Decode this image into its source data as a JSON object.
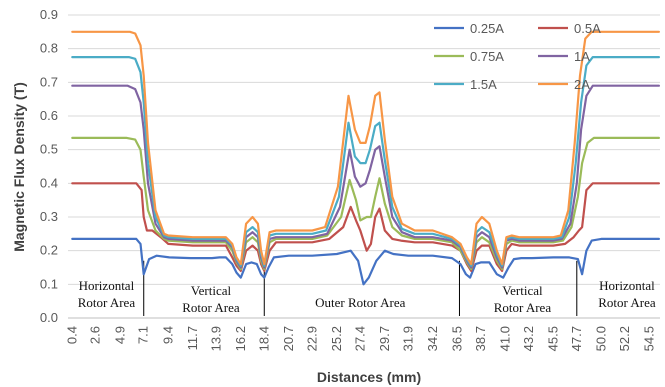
{
  "chart_data": {
    "type": "line",
    "title": "",
    "xlabel": "Distances (mm)",
    "ylabel": "Magnetic Flux Density (T)",
    "ylim": [
      0,
      0.9
    ],
    "yticks": [
      "0.0",
      "0.1",
      "0.2",
      "0.3",
      "0.4",
      "0.5",
      "0.6",
      "0.7",
      "0.8",
      "0.9"
    ],
    "xlim": [
      0,
      55.5
    ],
    "xticks": [
      "0.4",
      "2.6",
      "4.9",
      "7.1",
      "9.4",
      "11.7",
      "13.9",
      "16.2",
      "18.4",
      "20.7",
      "22.9",
      "25.2",
      "27.4",
      "29.7",
      "31.9",
      "34.2",
      "36.5",
      "38.7",
      "41.0",
      "43.2",
      "45.5",
      "47.7",
      "50.0",
      "52.2",
      "54.5"
    ],
    "grid": "horizontal",
    "legend_position": "top-right",
    "colors": {
      "0.25A": "#4472C4",
      "0.5A": "#C0504D",
      "0.75A": "#9BBB59",
      "1A": "#8064A2",
      "1.5A": "#4BACC6",
      "2A": "#F79646"
    },
    "series": [
      {
        "name": "0.25A",
        "x": [
          0.4,
          5.0,
          6.4,
          6.8,
          7.1,
          7.6,
          8.3,
          9.5,
          11.5,
          13.5,
          14.2,
          14.8,
          15.4,
          15.8,
          16.2,
          16.7,
          17.2,
          17.7,
          18.1,
          18.4,
          18.8,
          19.3,
          20.7,
          22.9,
          25.2,
          26.5,
          27.2,
          27.7,
          28.2,
          28.9,
          29.7,
          30.5,
          31.9,
          34.2,
          36.0,
          36.8,
          37.3,
          37.7,
          38.2,
          38.7,
          39.5,
          40.2,
          40.8,
          41.3,
          41.8,
          42.5,
          43.5,
          45.5,
          47.0,
          47.8,
          48.2,
          48.6,
          49.1,
          50.0,
          52.2,
          55.4
        ],
        "values": [
          0.235,
          0.235,
          0.235,
          0.22,
          0.13,
          0.175,
          0.185,
          0.18,
          0.178,
          0.178,
          0.18,
          0.18,
          0.16,
          0.135,
          0.12,
          0.16,
          0.165,
          0.16,
          0.13,
          0.12,
          0.15,
          0.18,
          0.185,
          0.185,
          0.19,
          0.2,
          0.17,
          0.1,
          0.12,
          0.17,
          0.2,
          0.19,
          0.185,
          0.185,
          0.178,
          0.16,
          0.13,
          0.12,
          0.16,
          0.165,
          0.165,
          0.13,
          0.12,
          0.15,
          0.175,
          0.178,
          0.178,
          0.18,
          0.18,
          0.175,
          0.13,
          0.2,
          0.23,
          0.235,
          0.235,
          0.235
        ]
      },
      {
        "name": "0.5A",
        "x": [
          0.4,
          5.5,
          6.4,
          6.9,
          7.1,
          7.4,
          7.9,
          8.7,
          9.4,
          11.7,
          13.9,
          14.8,
          15.4,
          15.8,
          16.2,
          16.7,
          17.3,
          17.8,
          18.1,
          18.4,
          18.9,
          19.5,
          20.7,
          22.9,
          24.5,
          25.8,
          26.5,
          27.0,
          27.4,
          28.0,
          28.4,
          28.8,
          29.2,
          29.7,
          30.4,
          31.2,
          32.5,
          34.2,
          36.0,
          36.8,
          37.4,
          37.8,
          38.3,
          38.8,
          39.5,
          40.2,
          40.7,
          41.1,
          41.6,
          42.3,
          43.2,
          45.5,
          46.6,
          47.4,
          47.9,
          48.2,
          48.6,
          49.2,
          50.0,
          52.2,
          55.4
        ],
        "values": [
          0.4,
          0.4,
          0.4,
          0.38,
          0.3,
          0.26,
          0.26,
          0.24,
          0.22,
          0.215,
          0.215,
          0.215,
          0.18,
          0.155,
          0.14,
          0.2,
          0.215,
          0.2,
          0.16,
          0.14,
          0.2,
          0.225,
          0.225,
          0.225,
          0.235,
          0.27,
          0.33,
          0.29,
          0.26,
          0.2,
          0.22,
          0.3,
          0.325,
          0.26,
          0.235,
          0.23,
          0.225,
          0.225,
          0.215,
          0.2,
          0.16,
          0.14,
          0.2,
          0.215,
          0.215,
          0.16,
          0.14,
          0.2,
          0.22,
          0.215,
          0.215,
          0.215,
          0.22,
          0.24,
          0.26,
          0.27,
          0.38,
          0.4,
          0.4,
          0.4,
          0.4
        ]
      },
      {
        "name": "0.75A",
        "x": [
          0.4,
          5.5,
          6.3,
          6.8,
          7.1,
          7.5,
          8.2,
          9.0,
          9.4,
          11.7,
          13.9,
          14.8,
          15.4,
          15.8,
          16.2,
          16.7,
          17.3,
          17.8,
          18.1,
          18.4,
          18.9,
          19.5,
          20.7,
          22.9,
          24.3,
          25.6,
          26.4,
          27.0,
          27.4,
          28.0,
          28.4,
          28.8,
          29.2,
          29.7,
          30.4,
          31.3,
          32.5,
          34.2,
          36.0,
          36.8,
          37.4,
          37.8,
          38.3,
          38.8,
          39.5,
          40.2,
          40.7,
          41.1,
          41.6,
          42.3,
          43.2,
          45.5,
          46.4,
          47.2,
          47.8,
          48.2,
          48.7,
          49.3,
          50.0,
          52.2,
          55.4
        ],
        "values": [
          0.535,
          0.535,
          0.53,
          0.5,
          0.42,
          0.32,
          0.26,
          0.235,
          0.23,
          0.225,
          0.225,
          0.225,
          0.2,
          0.165,
          0.145,
          0.225,
          0.24,
          0.225,
          0.17,
          0.145,
          0.225,
          0.235,
          0.235,
          0.235,
          0.245,
          0.3,
          0.41,
          0.35,
          0.29,
          0.3,
          0.3,
          0.36,
          0.415,
          0.34,
          0.27,
          0.245,
          0.235,
          0.235,
          0.225,
          0.2,
          0.165,
          0.145,
          0.225,
          0.24,
          0.225,
          0.17,
          0.145,
          0.22,
          0.23,
          0.225,
          0.225,
          0.225,
          0.23,
          0.27,
          0.36,
          0.46,
          0.52,
          0.535,
          0.535,
          0.535,
          0.535
        ]
      },
      {
        "name": "1A",
        "x": [
          0.4,
          5.6,
          6.3,
          6.8,
          7.1,
          7.5,
          8.2,
          9.0,
          9.4,
          11.7,
          13.9,
          14.8,
          15.4,
          15.8,
          16.2,
          16.7,
          17.3,
          17.8,
          18.1,
          18.4,
          18.9,
          19.5,
          20.7,
          22.9,
          24.3,
          25.5,
          26.4,
          26.9,
          27.4,
          27.9,
          28.3,
          28.8,
          29.2,
          29.7,
          30.4,
          31.3,
          32.5,
          34.2,
          36.0,
          36.8,
          37.4,
          37.8,
          38.3,
          38.8,
          39.5,
          40.2,
          40.7,
          41.1,
          41.6,
          42.3,
          43.2,
          45.5,
          46.3,
          47.1,
          47.7,
          48.1,
          48.6,
          49.2,
          50.0,
          52.2,
          55.4
        ],
        "values": [
          0.69,
          0.69,
          0.68,
          0.64,
          0.56,
          0.4,
          0.28,
          0.24,
          0.235,
          0.23,
          0.23,
          0.23,
          0.21,
          0.17,
          0.15,
          0.24,
          0.255,
          0.24,
          0.18,
          0.15,
          0.235,
          0.24,
          0.24,
          0.24,
          0.25,
          0.33,
          0.5,
          0.42,
          0.39,
          0.4,
          0.44,
          0.5,
          0.51,
          0.42,
          0.3,
          0.255,
          0.24,
          0.24,
          0.23,
          0.21,
          0.17,
          0.15,
          0.24,
          0.255,
          0.24,
          0.18,
          0.15,
          0.23,
          0.235,
          0.23,
          0.23,
          0.23,
          0.235,
          0.28,
          0.4,
          0.56,
          0.66,
          0.69,
          0.69,
          0.69,
          0.69
        ]
      },
      {
        "name": "1.5A",
        "x": [
          0.4,
          5.7,
          6.3,
          6.8,
          7.1,
          7.5,
          8.2,
          9.0,
          9.4,
          11.7,
          13.9,
          14.8,
          15.4,
          15.8,
          16.2,
          16.7,
          17.3,
          17.8,
          18.1,
          18.4,
          18.9,
          19.5,
          20.7,
          22.9,
          24.2,
          25.4,
          26.3,
          26.9,
          27.4,
          27.9,
          28.3,
          28.8,
          29.2,
          29.7,
          30.4,
          31.3,
          32.5,
          34.2,
          36.0,
          36.8,
          37.4,
          37.8,
          38.3,
          38.8,
          39.5,
          40.2,
          40.7,
          41.1,
          41.6,
          42.3,
          43.2,
          45.5,
          46.3,
          47.0,
          47.6,
          48.1,
          48.6,
          49.2,
          50.0,
          52.2,
          55.4
        ],
        "values": [
          0.775,
          0.775,
          0.77,
          0.73,
          0.64,
          0.46,
          0.3,
          0.245,
          0.24,
          0.235,
          0.235,
          0.235,
          0.215,
          0.175,
          0.155,
          0.255,
          0.27,
          0.255,
          0.19,
          0.155,
          0.245,
          0.25,
          0.25,
          0.25,
          0.26,
          0.36,
          0.58,
          0.48,
          0.46,
          0.46,
          0.5,
          0.57,
          0.58,
          0.47,
          0.33,
          0.265,
          0.25,
          0.25,
          0.235,
          0.215,
          0.175,
          0.155,
          0.255,
          0.27,
          0.255,
          0.19,
          0.155,
          0.235,
          0.24,
          0.235,
          0.235,
          0.235,
          0.24,
          0.3,
          0.46,
          0.64,
          0.75,
          0.775,
          0.775,
          0.775,
          0.775
        ]
      },
      {
        "name": "2A",
        "x": [
          0.4,
          5.8,
          6.3,
          6.8,
          7.1,
          7.5,
          8.2,
          9.0,
          9.4,
          11.7,
          13.9,
          14.8,
          15.4,
          15.8,
          16.2,
          16.7,
          17.3,
          17.8,
          18.1,
          18.4,
          18.9,
          19.5,
          20.7,
          22.9,
          24.1,
          25.3,
          26.3,
          26.9,
          27.4,
          27.9,
          28.3,
          28.8,
          29.2,
          29.7,
          30.4,
          31.3,
          32.5,
          34.2,
          36.0,
          36.8,
          37.4,
          37.8,
          38.3,
          38.8,
          39.5,
          40.2,
          40.7,
          41.1,
          41.6,
          42.3,
          43.2,
          45.5,
          46.2,
          46.9,
          47.5,
          48.0,
          48.5,
          49.1,
          50.0,
          52.2,
          55.4
        ],
        "values": [
          0.85,
          0.85,
          0.845,
          0.81,
          0.72,
          0.52,
          0.32,
          0.25,
          0.245,
          0.24,
          0.24,
          0.24,
          0.22,
          0.18,
          0.16,
          0.28,
          0.3,
          0.28,
          0.2,
          0.16,
          0.255,
          0.26,
          0.26,
          0.26,
          0.27,
          0.39,
          0.66,
          0.56,
          0.52,
          0.52,
          0.57,
          0.66,
          0.67,
          0.53,
          0.36,
          0.28,
          0.26,
          0.26,
          0.24,
          0.22,
          0.18,
          0.16,
          0.28,
          0.3,
          0.28,
          0.2,
          0.16,
          0.24,
          0.245,
          0.24,
          0.24,
          0.24,
          0.245,
          0.32,
          0.52,
          0.72,
          0.83,
          0.85,
          0.85,
          0.85,
          0.85
        ]
      }
    ],
    "regions": [
      {
        "label_lines": [
          "Horizontal",
          "Rotor Area"
        ],
        "x_center": 3.6
      },
      {
        "label_lines": [
          "Vertical",
          "Rotor Area"
        ],
        "x_center": 13.4
      },
      {
        "label_lines": [
          "Outer Rotor Area"
        ],
        "x_center": 27.4
      },
      {
        "label_lines": [
          "Vertical",
          "Rotor Area"
        ],
        "x_center": 42.6
      },
      {
        "label_lines": [
          "Horizontal",
          "Rotor Area"
        ],
        "x_center": 52.4
      }
    ],
    "region_dividers": [
      7.1,
      18.4,
      36.7,
      47.7
    ]
  }
}
